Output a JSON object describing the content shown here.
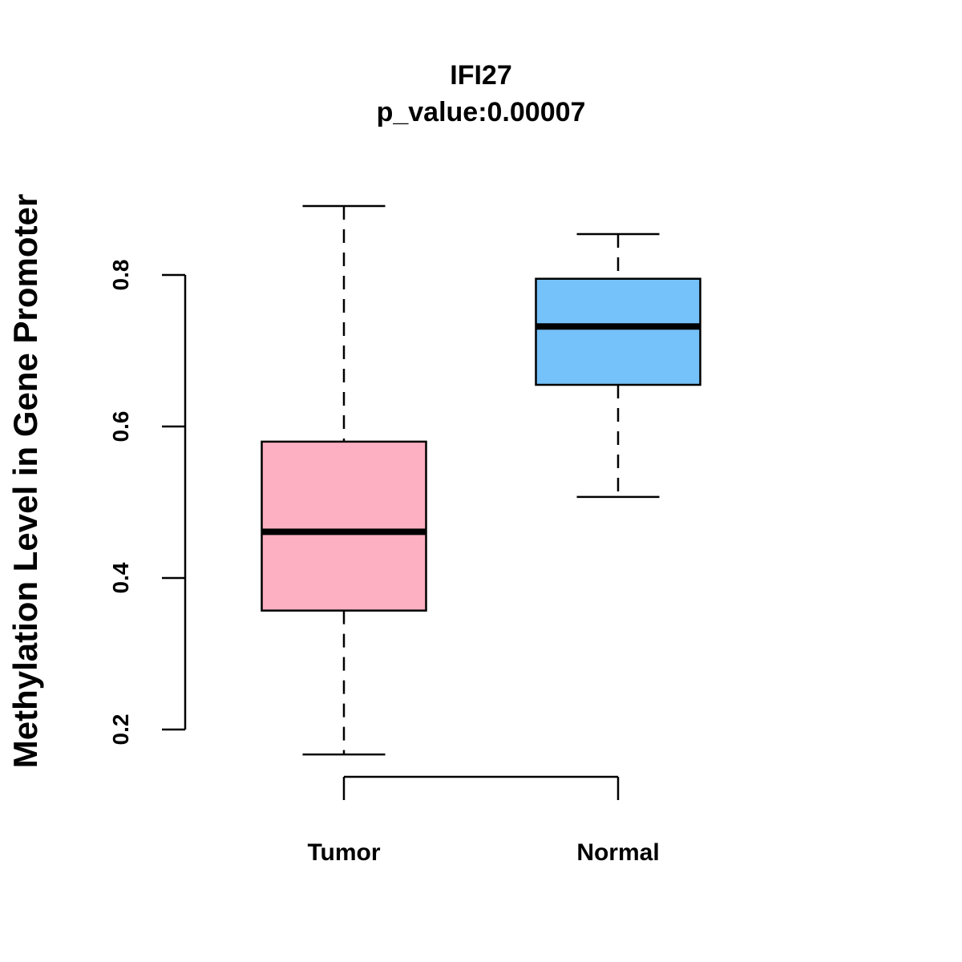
{
  "chart_data": {
    "type": "boxplot",
    "title": "IFI27",
    "subtitle": "p_value:0.00007",
    "xlabel": "",
    "ylabel": "Methylation Level in Gene Promoter",
    "y_ticks": [
      0.2,
      0.4,
      0.6,
      0.8
    ],
    "y_tick_labels": [
      "0.2",
      "0.4",
      "0.6",
      "0.8"
    ],
    "categories": [
      "Tumor",
      "Normal"
    ],
    "boxes": [
      {
        "name": "Tumor",
        "min": 0.167,
        "q1": 0.357,
        "median": 0.461,
        "q3": 0.58,
        "max": 0.891,
        "color": "#FDB0C2"
      },
      {
        "name": "Normal",
        "min": 0.507,
        "q1": 0.655,
        "median": 0.732,
        "q3": 0.795,
        "max": 0.854,
        "color": "#75C1F9"
      }
    ],
    "grid": false,
    "legend": "none"
  }
}
